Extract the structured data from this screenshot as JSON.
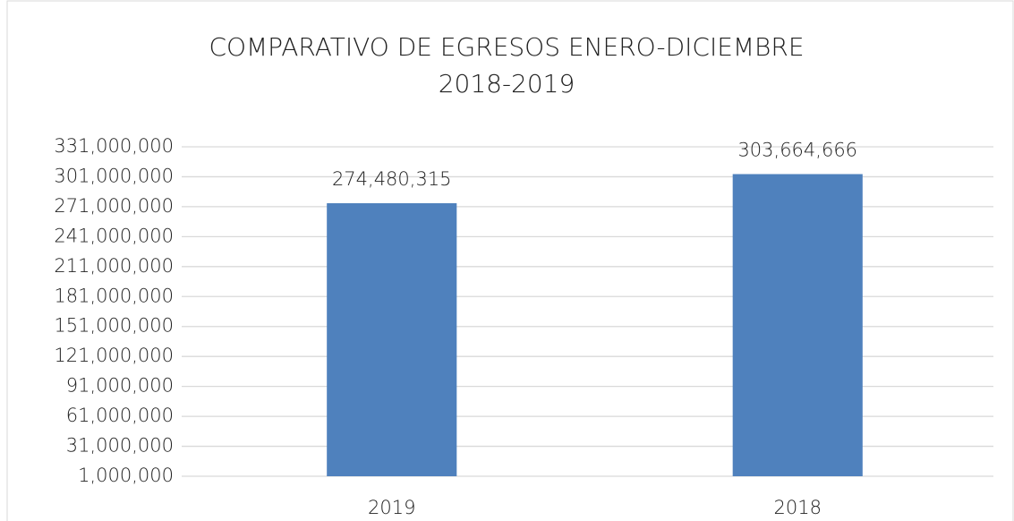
{
  "chart_data": {
    "type": "bar",
    "title": [
      "COMPARATIVO DE EGRESOS ENERO-DICIEMBRE",
      "2018-2019"
    ],
    "categories": [
      "2019",
      "2018"
    ],
    "values": [
      274480315,
      303664666
    ],
    "value_labels": [
      "274,480,315",
      "303,664,666"
    ],
    "color": "#4f81bd",
    "ylim": [
      1000000,
      331000000
    ],
    "yticks": [
      {
        "value": 1000000,
        "label": "1,000,000"
      },
      {
        "value": 31000000,
        "label": "31,000,000"
      },
      {
        "value": 61000000,
        "label": "61,000,000"
      },
      {
        "value": 91000000,
        "label": "91,000,000"
      },
      {
        "value": 121000000,
        "label": "121,000,000"
      },
      {
        "value": 151000000,
        "label": "151,000,000"
      },
      {
        "value": 181000000,
        "label": "181,000,000"
      },
      {
        "value": 211000000,
        "label": "211,000,000"
      },
      {
        "value": 241000000,
        "label": "241,000,000"
      },
      {
        "value": 271000000,
        "label": "271,000,000"
      },
      {
        "value": 301000000,
        "label": "301,000,000"
      },
      {
        "value": 331000000,
        "label": "331,000,000"
      }
    ],
    "grid": true
  }
}
